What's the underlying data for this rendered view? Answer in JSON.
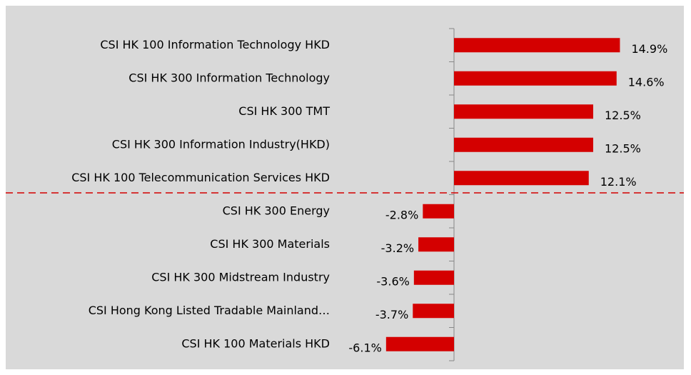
{
  "chart_data": {
    "type": "bar",
    "orientation": "horizontal",
    "categories": [
      "CSI HK 100 Information Technology HKD",
      "CSI HK 300 Information Technology",
      "CSI HK 300 TMT",
      "CSI HK 300 Information Industry(HKD)",
      "CSI HK 100 Telecommunication Services HKD",
      "CSI HK 300 Energy",
      "CSI HK 300 Materials",
      "CSI HK 300 Midstream Industry",
      "CSI Hong Kong Listed Tradable Mainland…",
      "CSI HK 100 Materials HKD"
    ],
    "values": [
      14.9,
      14.6,
      12.5,
      12.5,
      12.1,
      -2.8,
      -3.2,
      -3.6,
      -3.7,
      -6.1
    ],
    "value_labels": [
      "14.9%",
      "14.6%",
      "12.5%",
      "12.5%",
      "12.1%",
      "-2.8%",
      "-3.2%",
      "-3.6%",
      "-3.7%",
      "-6.1%"
    ],
    "color": "#d40000"
  }
}
